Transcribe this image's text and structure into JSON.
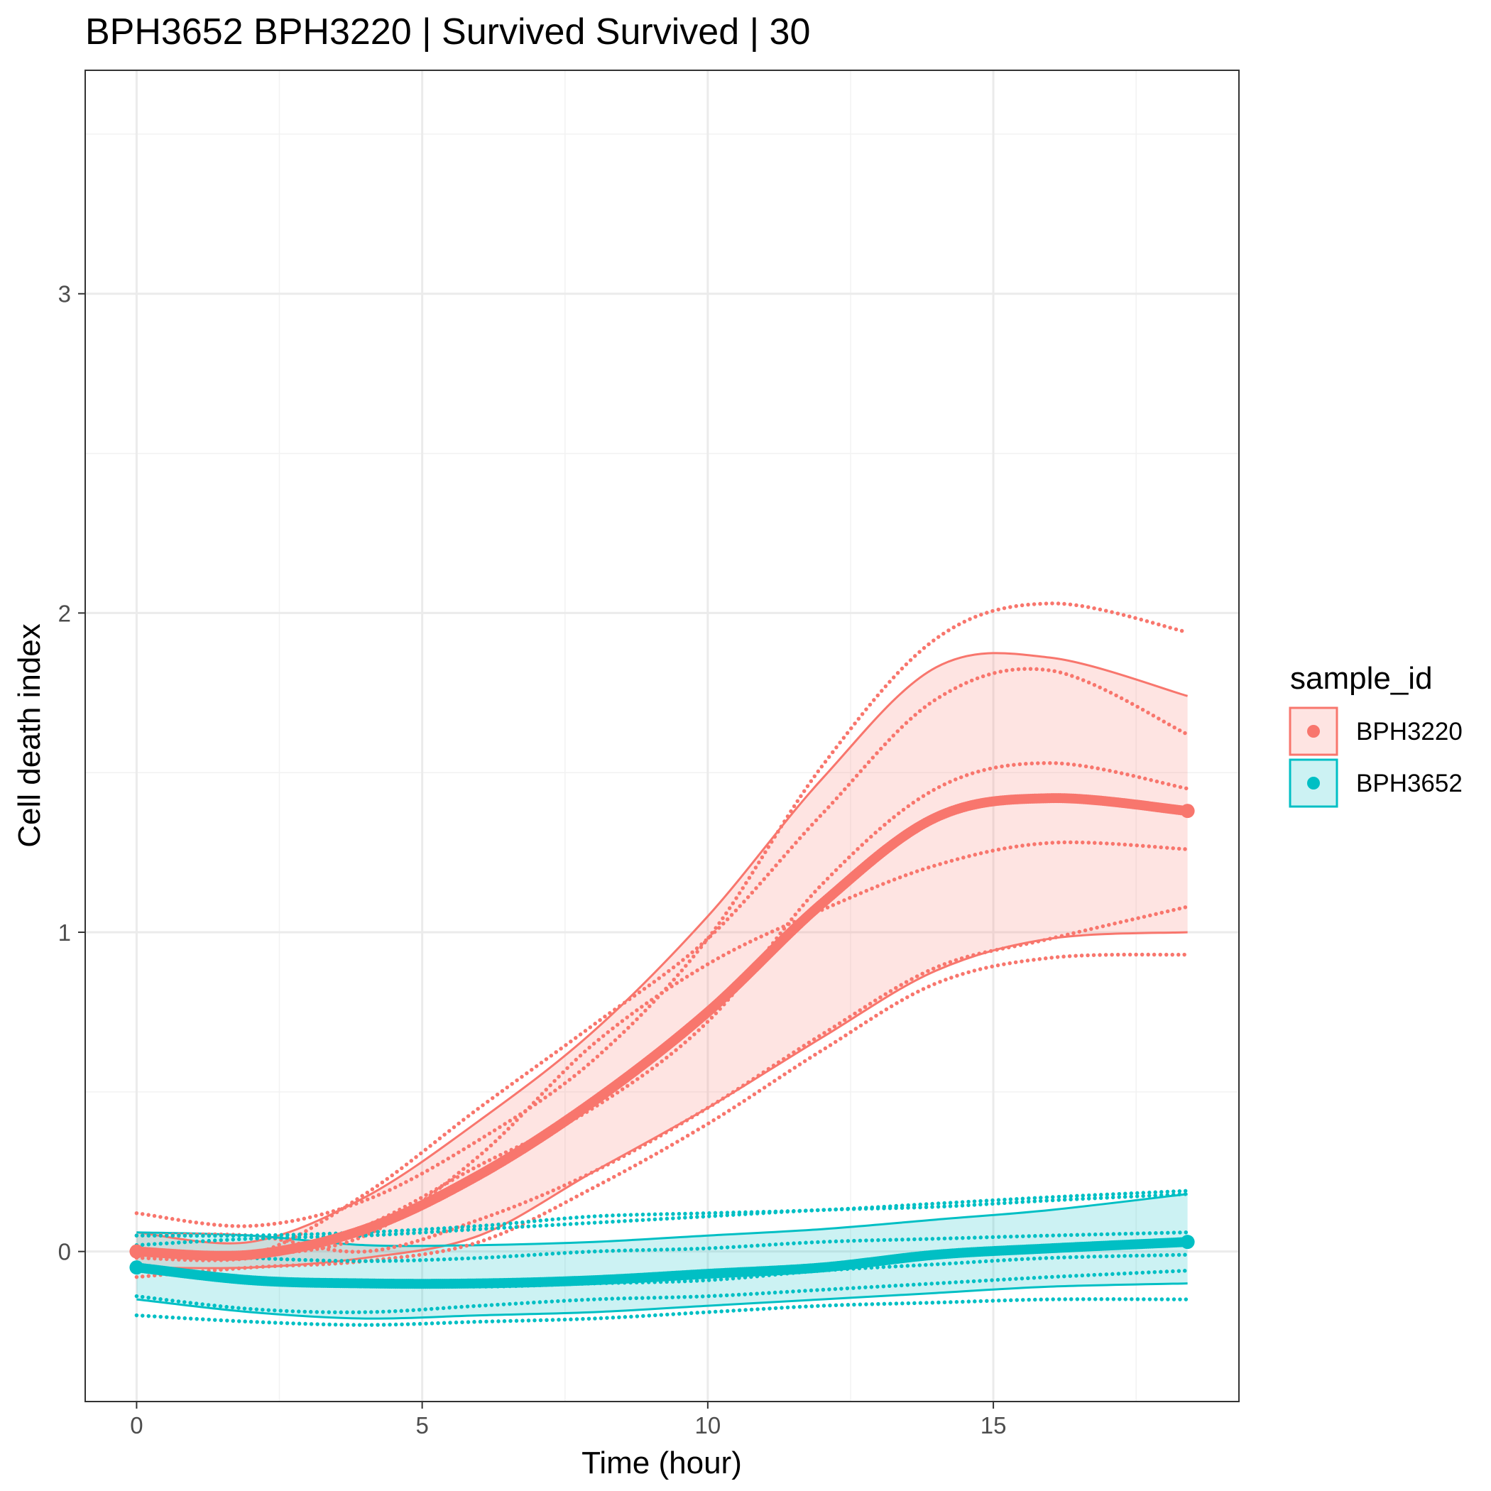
{
  "chart_data": {
    "type": "line",
    "title": "BPH3652 BPH3220 | Survived Survived | 30",
    "xlabel": "Time (hour)",
    "ylabel": "Cell death index",
    "xlim": [
      -0.9,
      19.3
    ],
    "ylim": [
      -0.47,
      3.7
    ],
    "x_ticks": [
      0,
      5,
      10,
      15
    ],
    "y_ticks": [
      0,
      1,
      2,
      3
    ],
    "grid": true,
    "legend": {
      "title": "sample_id",
      "placement": "right",
      "entries": [
        {
          "label": "BPH3220",
          "color": "#F8766D"
        },
        {
          "label": "BPH3652",
          "color": "#00BFC4"
        }
      ]
    },
    "x": [
      0,
      2,
      4,
      6,
      8,
      10,
      12,
      14,
      16,
      18.4
    ],
    "series": [
      {
        "name": "BPH3220",
        "color": "#F8766D",
        "mean": [
          0.0,
          -0.01,
          0.07,
          0.24,
          0.47,
          0.75,
          1.09,
          1.36,
          1.42,
          1.38
        ],
        "ribbon_upper": [
          0.06,
          0.03,
          0.17,
          0.41,
          0.69,
          1.05,
          1.48,
          1.83,
          1.86,
          1.74
        ],
        "ribbon_lower": [
          -0.05,
          -0.05,
          -0.02,
          0.05,
          0.25,
          0.45,
          0.67,
          0.88,
          0.98,
          1.0
        ],
        "replicates": [
          [
            0.12,
            0.08,
            0.16,
            0.35,
            0.6,
            0.98,
            1.52,
            1.92,
            2.03,
            1.94
          ],
          [
            0.0,
            -0.01,
            0.18,
            0.45,
            0.71,
            0.98,
            1.37,
            1.73,
            1.82,
            1.62
          ],
          [
            -0.02,
            -0.02,
            0.08,
            0.27,
            0.45,
            0.72,
            1.15,
            1.45,
            1.53,
            1.45
          ],
          [
            0.0,
            -0.01,
            0.05,
            0.3,
            0.65,
            0.9,
            1.07,
            1.21,
            1.28,
            1.26
          ],
          [
            0.05,
            0.05,
            0.0,
            0.1,
            0.25,
            0.45,
            0.68,
            0.89,
            0.98,
            1.08
          ],
          [
            -0.08,
            -0.05,
            -0.03,
            0.03,
            0.2,
            0.4,
            0.63,
            0.84,
            0.92,
            0.93
          ]
        ]
      },
      {
        "name": "BPH3652",
        "color": "#00BFC4",
        "mean": [
          -0.05,
          -0.09,
          -0.1,
          -0.1,
          -0.09,
          -0.07,
          -0.05,
          -0.01,
          0.01,
          0.03
        ],
        "ribbon_upper": [
          0.06,
          0.05,
          0.02,
          0.02,
          0.03,
          0.05,
          0.07,
          0.1,
          0.13,
          0.18
        ],
        "ribbon_lower": [
          -0.15,
          -0.19,
          -0.21,
          -0.2,
          -0.19,
          -0.17,
          -0.15,
          -0.13,
          -0.11,
          -0.1
        ],
        "replicates": [
          [
            0.05,
            0.05,
            0.06,
            0.08,
            0.11,
            0.12,
            0.13,
            0.15,
            0.17,
            0.19
          ],
          [
            0.02,
            0.04,
            0.05,
            0.07,
            0.09,
            0.11,
            0.13,
            0.14,
            0.16,
            0.18
          ],
          [
            0.0,
            -0.02,
            -0.03,
            -0.02,
            0.0,
            0.01,
            0.03,
            0.04,
            0.05,
            0.06
          ],
          [
            -0.05,
            -0.09,
            -0.1,
            -0.11,
            -0.1,
            -0.09,
            -0.06,
            -0.04,
            -0.02,
            -0.01
          ],
          [
            -0.14,
            -0.18,
            -0.19,
            -0.17,
            -0.15,
            -0.14,
            -0.12,
            -0.1,
            -0.08,
            -0.06
          ],
          [
            -0.2,
            -0.22,
            -0.23,
            -0.22,
            -0.21,
            -0.19,
            -0.17,
            -0.16,
            -0.15,
            -0.15
          ]
        ]
      }
    ]
  }
}
